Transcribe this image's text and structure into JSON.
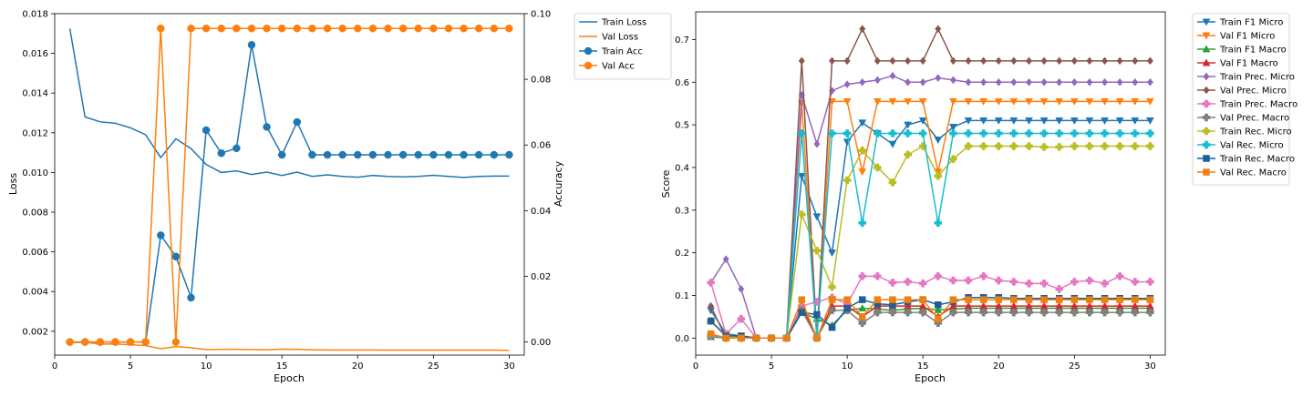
{
  "chart_data": [
    {
      "type": "line",
      "xlabel": "Epoch",
      "ylabel": "Loss",
      "y2label": "Accuracy",
      "xlim": [
        0,
        31
      ],
      "ylim": [
        0.0008,
        0.018
      ],
      "y2lim": [
        -0.004,
        0.1
      ],
      "xticks": [
        0,
        5,
        10,
        15,
        20,
        25,
        30
      ],
      "yticks": [
        0.002,
        0.004,
        0.006,
        0.008,
        0.01,
        0.012,
        0.014,
        0.016,
        0.018
      ],
      "y2ticks": [
        0.0,
        0.02,
        0.04,
        0.06,
        0.08,
        0.1
      ],
      "x": [
        1,
        2,
        3,
        4,
        5,
        6,
        7,
        8,
        9,
        10,
        11,
        12,
        13,
        14,
        15,
        16,
        17,
        18,
        19,
        20,
        21,
        22,
        23,
        24,
        25,
        26,
        27,
        28,
        29,
        30
      ],
      "legend_position": "outside-top-right",
      "series": [
        {
          "name": "Train Loss",
          "axis": "left",
          "marker": "none",
          "color": "#1f77b4",
          "values": [
            0.01725,
            0.0128,
            0.01255,
            0.01248,
            0.01225,
            0.0119,
            0.01075,
            0.0117,
            0.0112,
            0.0104,
            0.01,
            0.01008,
            0.0099,
            0.01002,
            0.00985,
            0.01002,
            0.0098,
            0.00988,
            0.0098,
            0.00976,
            0.00985,
            0.0098,
            0.00978,
            0.0098,
            0.00986,
            0.0098,
            0.00975,
            0.0098,
            0.00982,
            0.00982
          ]
        },
        {
          "name": "Val Loss",
          "axis": "left",
          "marker": "none",
          "color": "#ff7f0e",
          "values": [
            0.00143,
            0.00145,
            0.00135,
            0.00136,
            0.00132,
            0.00128,
            0.00112,
            0.00123,
            0.00117,
            0.00108,
            0.00109,
            0.00109,
            0.00108,
            0.00107,
            0.0011,
            0.00109,
            0.00107,
            0.00106,
            0.00106,
            0.00106,
            0.00106,
            0.00105,
            0.00105,
            0.00105,
            0.00105,
            0.00105,
            0.00105,
            0.00105,
            0.00105,
            0.00104
          ]
        },
        {
          "name": "Train Acc",
          "axis": "right",
          "marker": "circle",
          "color": "#1f77b4",
          "values": [
            0,
            0,
            0,
            0,
            0,
            0,
            0.0325,
            0.026,
            0.0135,
            0.0645,
            0.0575,
            0.059,
            0.0905,
            0.0655,
            0.057,
            0.067,
            0.057,
            0.057,
            0.057,
            0.057,
            0.057,
            0.057,
            0.057,
            0.057,
            0.057,
            0.057,
            0.057,
            0.057,
            0.057,
            0.057
          ]
        },
        {
          "name": "Val Acc",
          "axis": "right",
          "marker": "circle",
          "color": "#ff7f0e",
          "values": [
            0,
            0,
            0,
            0,
            0,
            0,
            0.0955,
            0,
            0.0955,
            0.0955,
            0.0955,
            0.0955,
            0.0955,
            0.0955,
            0.0955,
            0.0955,
            0.0955,
            0.0955,
            0.0955,
            0.0955,
            0.0955,
            0.0955,
            0.0955,
            0.0955,
            0.0955,
            0.0955,
            0.0955,
            0.0955,
            0.0955,
            0.0955
          ]
        }
      ]
    },
    {
      "type": "line",
      "xlabel": "Epoch",
      "ylabel": "Score",
      "xlim": [
        0,
        31
      ],
      "ylim": [
        -0.04,
        0.765
      ],
      "xticks": [
        0,
        5,
        10,
        15,
        20,
        25,
        30
      ],
      "yticks": [
        0.0,
        0.1,
        0.2,
        0.3,
        0.4,
        0.5,
        0.6,
        0.7
      ],
      "x": [
        1,
        2,
        3,
        4,
        5,
        6,
        7,
        8,
        9,
        10,
        11,
        12,
        13,
        14,
        15,
        16,
        17,
        18,
        19,
        20,
        21,
        22,
        23,
        24,
        25,
        26,
        27,
        28,
        29,
        30
      ],
      "legend_position": "outside-top-right",
      "series": [
        {
          "name": "Train F1 Micro",
          "marker": "triangle-down",
          "color": "#1f77b4",
          "values": [
            0.065,
            0.01,
            0.005,
            0,
            0,
            0,
            0.38,
            0.285,
            0.2,
            0.46,
            0.505,
            0.48,
            0.455,
            0.5,
            0.51,
            0.465,
            0.495,
            0.51,
            0.51,
            0.51,
            0.51,
            0.51,
            0.51,
            0.51,
            0.51,
            0.51,
            0.51,
            0.51,
            0.51,
            0.51
          ]
        },
        {
          "name": "Val F1 Micro",
          "marker": "triangle-down",
          "color": "#ff7f0e",
          "values": [
            0.005,
            0,
            0,
            0,
            0,
            0,
            0.55,
            0,
            0.555,
            0.555,
            0.39,
            0.555,
            0.555,
            0.555,
            0.555,
            0.39,
            0.555,
            0.555,
            0.555,
            0.555,
            0.555,
            0.555,
            0.555,
            0.555,
            0.555,
            0.555,
            0.555,
            0.555,
            0.555,
            0.555
          ]
        },
        {
          "name": "Train F1 Macro",
          "marker": "triangle-up",
          "color": "#2ca02c",
          "values": [
            0.04,
            0.005,
            0.002,
            0,
            0,
            0,
            0.06,
            0.045,
            0.03,
            0.065,
            0.07,
            0.068,
            0.065,
            0.068,
            0.07,
            0.066,
            0.068,
            0.07,
            0.07,
            0.07,
            0.07,
            0.07,
            0.07,
            0.07,
            0.07,
            0.07,
            0.07,
            0.07,
            0.07,
            0.07
          ]
        },
        {
          "name": "Val F1 Macro",
          "marker": "triangle-up",
          "color": "#d62728",
          "values": [
            0.003,
            0,
            0,
            0,
            0,
            0,
            0.075,
            0,
            0.075,
            0.075,
            0.05,
            0.075,
            0.075,
            0.075,
            0.075,
            0.05,
            0.075,
            0.075,
            0.075,
            0.075,
            0.075,
            0.075,
            0.075,
            0.075,
            0.075,
            0.075,
            0.075,
            0.075,
            0.075,
            0.075
          ]
        },
        {
          "name": "Train Prec. Micro",
          "marker": "diamond",
          "color": "#9467bd",
          "values": [
            0.13,
            0.185,
            0.115,
            0,
            0,
            0,
            0.57,
            0.455,
            0.58,
            0.595,
            0.6,
            0.605,
            0.615,
            0.6,
            0.6,
            0.61,
            0.605,
            0.6,
            0.6,
            0.6,
            0.6,
            0.6,
            0.6,
            0.6,
            0.6,
            0.6,
            0.6,
            0.6,
            0.6,
            0.6
          ]
        },
        {
          "name": "Val Prec. Micro",
          "marker": "diamond",
          "color": "#8c564b",
          "values": [
            0.075,
            0,
            0,
            0,
            0,
            0,
            0.65,
            0,
            0.65,
            0.65,
            0.725,
            0.65,
            0.65,
            0.65,
            0.65,
            0.725,
            0.65,
            0.65,
            0.65,
            0.65,
            0.65,
            0.65,
            0.65,
            0.65,
            0.65,
            0.65,
            0.65,
            0.65,
            0.65,
            0.65
          ]
        },
        {
          "name": "Train Prec. Macro",
          "marker": "plus-filled",
          "color": "#e377c2",
          "values": [
            0.13,
            0.01,
            0.045,
            0,
            0,
            0,
            0.075,
            0.085,
            0.095,
            0.08,
            0.145,
            0.145,
            0.13,
            0.132,
            0.128,
            0.145,
            0.135,
            0.135,
            0.145,
            0.135,
            0.132,
            0.128,
            0.128,
            0.115,
            0.132,
            0.135,
            0.128,
            0.145,
            0.132,
            0.132
          ]
        },
        {
          "name": "Val Prec. Macro",
          "marker": "plus-filled",
          "color": "#7f7f7f",
          "values": [
            0.005,
            0,
            0,
            0,
            0,
            0,
            0.065,
            0,
            0.065,
            0.065,
            0.035,
            0.06,
            0.06,
            0.06,
            0.06,
            0.035,
            0.06,
            0.06,
            0.06,
            0.06,
            0.06,
            0.06,
            0.06,
            0.06,
            0.06,
            0.06,
            0.06,
            0.06,
            0.06,
            0.06
          ]
        },
        {
          "name": "Train Rec. Micro",
          "marker": "plus-filled",
          "color": "#bcbd22",
          "values": [
            0.04,
            0.005,
            0,
            0,
            0,
            0,
            0.29,
            0.205,
            0.12,
            0.37,
            0.44,
            0.4,
            0.365,
            0.43,
            0.45,
            0.38,
            0.42,
            0.45,
            0.45,
            0.45,
            0.45,
            0.45,
            0.448,
            0.448,
            0.45,
            0.45,
            0.45,
            0.45,
            0.45,
            0.45
          ]
        },
        {
          "name": "Val Rec. Micro",
          "marker": "plus-filled",
          "color": "#17becf",
          "values": [
            0.005,
            0,
            0,
            0,
            0,
            0,
            0.48,
            0,
            0.48,
            0.48,
            0.27,
            0.48,
            0.48,
            0.48,
            0.48,
            0.27,
            0.48,
            0.48,
            0.48,
            0.48,
            0.48,
            0.48,
            0.48,
            0.48,
            0.48,
            0.48,
            0.48,
            0.48,
            0.48,
            0.48
          ]
        },
        {
          "name": "Train Rec. Macro",
          "marker": "square",
          "color": "#1f5e96",
          "values": [
            0.04,
            0.005,
            0.005,
            0,
            0,
            0,
            0.06,
            0.055,
            0.025,
            0.07,
            0.09,
            0.08,
            0.078,
            0.085,
            0.09,
            0.078,
            0.085,
            0.095,
            0.095,
            0.095,
            0.093,
            0.093,
            0.093,
            0.093,
            0.093,
            0.093,
            0.093,
            0.093,
            0.093,
            0.093
          ]
        },
        {
          "name": "Val Rec. Macro",
          "marker": "square",
          "color": "#f07f12",
          "values": [
            0.01,
            0,
            0,
            0,
            0,
            0,
            0.09,
            0,
            0.09,
            0.09,
            0.05,
            0.09,
            0.09,
            0.09,
            0.09,
            0.045,
            0.09,
            0.09,
            0.09,
            0.09,
            0.09,
            0.09,
            0.09,
            0.09,
            0.09,
            0.09,
            0.09,
            0.09,
            0.09,
            0.09
          ]
        }
      ]
    }
  ]
}
